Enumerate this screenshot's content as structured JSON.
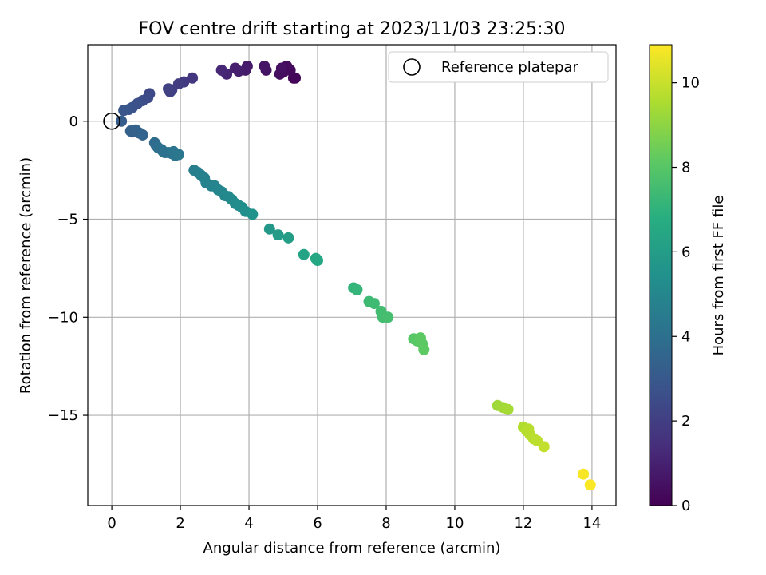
{
  "chart_data": {
    "type": "scatter",
    "title": "FOV centre drift starting at 2023/11/03 23:25:30",
    "xlabel": "Angular distance from reference (arcmin)",
    "ylabel": "Rotation from reference (arcmin)",
    "xlim": [
      -0.7,
      14.7
    ],
    "ylim": [
      -19.6,
      3.9
    ],
    "x_ticks": [
      0,
      2,
      4,
      6,
      8,
      10,
      12,
      14
    ],
    "y_ticks": [
      0,
      -5,
      -10,
      -15
    ],
    "y_tick_labels": [
      "0",
      "−5",
      "−10",
      "−15"
    ],
    "grid": true,
    "legend": {
      "placement": "top-right",
      "entries": [
        "Reference platepar"
      ]
    },
    "reference_point": {
      "x": 0,
      "y": 0
    },
    "colorbar": {
      "label": "Hours from first FF file",
      "range": [
        0,
        10.9
      ],
      "ticks": [
        0,
        2,
        4,
        6,
        8,
        10
      ],
      "colormap": "viridis"
    },
    "points": [
      {
        "x": 5.3,
        "y": 2.2,
        "h": 0.1
      },
      {
        "x": 5.35,
        "y": 2.2,
        "h": 0.15
      },
      {
        "x": 5.2,
        "y": 2.6,
        "h": 0.25
      },
      {
        "x": 5.1,
        "y": 2.8,
        "h": 0.3
      },
      {
        "x": 5.0,
        "y": 2.5,
        "h": 0.35
      },
      {
        "x": 4.9,
        "y": 2.4,
        "h": 0.4
      },
      {
        "x": 4.95,
        "y": 2.7,
        "h": 0.45
      },
      {
        "x": 4.5,
        "y": 2.6,
        "h": 0.55
      },
      {
        "x": 4.45,
        "y": 2.8,
        "h": 0.6
      },
      {
        "x": 3.95,
        "y": 2.8,
        "h": 0.75
      },
      {
        "x": 3.9,
        "y": 2.6,
        "h": 0.8
      },
      {
        "x": 3.7,
        "y": 2.55,
        "h": 0.9
      },
      {
        "x": 3.6,
        "y": 2.7,
        "h": 0.95
      },
      {
        "x": 3.35,
        "y": 2.4,
        "h": 1.1
      },
      {
        "x": 3.2,
        "y": 2.6,
        "h": 1.2
      },
      {
        "x": 2.35,
        "y": 2.2,
        "h": 1.7
      },
      {
        "x": 2.1,
        "y": 2.0,
        "h": 1.8
      },
      {
        "x": 1.95,
        "y": 1.9,
        "h": 1.9
      },
      {
        "x": 1.75,
        "y": 1.6,
        "h": 2.0
      },
      {
        "x": 1.7,
        "y": 1.5,
        "h": 2.05
      },
      {
        "x": 1.65,
        "y": 1.65,
        "h": 2.1
      },
      {
        "x": 1.1,
        "y": 1.4,
        "h": 2.35
      },
      {
        "x": 1.05,
        "y": 1.2,
        "h": 2.45
      },
      {
        "x": 0.9,
        "y": 1.05,
        "h": 2.55
      },
      {
        "x": 0.75,
        "y": 0.9,
        "h": 2.65
      },
      {
        "x": 0.6,
        "y": 0.7,
        "h": 2.75
      },
      {
        "x": 0.5,
        "y": 0.6,
        "h": 2.85
      },
      {
        "x": 0.35,
        "y": 0.55,
        "h": 2.95
      },
      {
        "x": 0.28,
        "y": 0.0,
        "h": 3.15
      },
      {
        "x": 0.55,
        "y": -0.5,
        "h": 3.3
      },
      {
        "x": 0.6,
        "y": -0.55,
        "h": 3.35
      },
      {
        "x": 0.7,
        "y": -0.45,
        "h": 3.4
      },
      {
        "x": 0.8,
        "y": -0.6,
        "h": 3.45
      },
      {
        "x": 0.9,
        "y": -0.7,
        "h": 3.5
      },
      {
        "x": 1.25,
        "y": -1.1,
        "h": 3.8
      },
      {
        "x": 1.3,
        "y": -1.25,
        "h": 3.85
      },
      {
        "x": 1.35,
        "y": -1.35,
        "h": 3.9
      },
      {
        "x": 1.45,
        "y": -1.45,
        "h": 3.95
      },
      {
        "x": 1.5,
        "y": -1.55,
        "h": 4.0
      },
      {
        "x": 1.55,
        "y": -1.6,
        "h": 4.05
      },
      {
        "x": 1.65,
        "y": -1.6,
        "h": 4.1
      },
      {
        "x": 1.75,
        "y": -1.65,
        "h": 4.15
      },
      {
        "x": 1.8,
        "y": -1.55,
        "h": 4.2
      },
      {
        "x": 1.85,
        "y": -1.75,
        "h": 4.25
      },
      {
        "x": 1.95,
        "y": -1.7,
        "h": 4.3
      },
      {
        "x": 2.4,
        "y": -2.5,
        "h": 4.6
      },
      {
        "x": 2.5,
        "y": -2.6,
        "h": 4.65
      },
      {
        "x": 2.6,
        "y": -2.75,
        "h": 4.7
      },
      {
        "x": 2.7,
        "y": -2.9,
        "h": 4.75
      },
      {
        "x": 2.75,
        "y": -3.15,
        "h": 4.8
      },
      {
        "x": 2.9,
        "y": -3.3,
        "h": 4.85
      },
      {
        "x": 3.0,
        "y": -3.3,
        "h": 4.9
      },
      {
        "x": 3.1,
        "y": -3.5,
        "h": 4.95
      },
      {
        "x": 3.2,
        "y": -3.6,
        "h": 5.0
      },
      {
        "x": 3.3,
        "y": -3.8,
        "h": 5.05
      },
      {
        "x": 3.4,
        "y": -3.85,
        "h": 5.1
      },
      {
        "x": 3.5,
        "y": -4.0,
        "h": 5.15
      },
      {
        "x": 3.6,
        "y": -4.2,
        "h": 5.2
      },
      {
        "x": 3.7,
        "y": -4.3,
        "h": 5.25
      },
      {
        "x": 3.8,
        "y": -4.4,
        "h": 5.3
      },
      {
        "x": 3.9,
        "y": -4.6,
        "h": 5.35
      },
      {
        "x": 4.1,
        "y": -4.75,
        "h": 5.45
      },
      {
        "x": 4.6,
        "y": -5.5,
        "h": 5.8
      },
      {
        "x": 4.85,
        "y": -5.8,
        "h": 5.9
      },
      {
        "x": 5.15,
        "y": -5.95,
        "h": 6.0
      },
      {
        "x": 5.6,
        "y": -6.8,
        "h": 6.3
      },
      {
        "x": 5.95,
        "y": -7.0,
        "h": 6.45
      },
      {
        "x": 6.0,
        "y": -7.1,
        "h": 6.5
      },
      {
        "x": 7.05,
        "y": -8.5,
        "h": 7.1
      },
      {
        "x": 7.15,
        "y": -8.6,
        "h": 7.15
      },
      {
        "x": 7.5,
        "y": -9.2,
        "h": 7.35
      },
      {
        "x": 7.65,
        "y": -9.3,
        "h": 7.4
      },
      {
        "x": 7.85,
        "y": -9.7,
        "h": 7.5
      },
      {
        "x": 7.9,
        "y": -10.0,
        "h": 7.55
      },
      {
        "x": 8.05,
        "y": -10.0,
        "h": 7.6
      },
      {
        "x": 8.8,
        "y": -11.1,
        "h": 8.0
      },
      {
        "x": 8.9,
        "y": -11.2,
        "h": 8.05
      },
      {
        "x": 9.0,
        "y": -11.05,
        "h": 8.1
      },
      {
        "x": 9.05,
        "y": -11.35,
        "h": 8.1
      },
      {
        "x": 9.1,
        "y": -11.65,
        "h": 8.15
      },
      {
        "x": 11.25,
        "y": -14.5,
        "h": 9.3
      },
      {
        "x": 11.4,
        "y": -14.6,
        "h": 9.35
      },
      {
        "x": 11.55,
        "y": -14.7,
        "h": 9.4
      },
      {
        "x": 12.0,
        "y": -15.6,
        "h": 9.6
      },
      {
        "x": 12.1,
        "y": -15.8,
        "h": 9.65
      },
      {
        "x": 12.15,
        "y": -15.7,
        "h": 9.7
      },
      {
        "x": 12.2,
        "y": -16.0,
        "h": 9.72
      },
      {
        "x": 12.3,
        "y": -16.2,
        "h": 9.75
      },
      {
        "x": 12.4,
        "y": -16.3,
        "h": 9.8
      },
      {
        "x": 12.6,
        "y": -16.6,
        "h": 9.9
      },
      {
        "x": 13.75,
        "y": -18.0,
        "h": 10.8
      },
      {
        "x": 13.95,
        "y": -18.55,
        "h": 10.85
      }
    ]
  }
}
